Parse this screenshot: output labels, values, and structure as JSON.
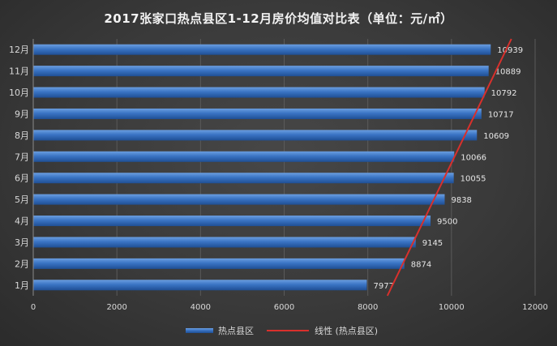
{
  "chart_data": {
    "type": "bar",
    "orientation": "horizontal",
    "title": "2017张家口热点县区1-12月房价均值对比表（单位：元/㎡）",
    "categories": [
      "1月",
      "2月",
      "3月",
      "4月",
      "5月",
      "6月",
      "7月",
      "8月",
      "9月",
      "10月",
      "11月",
      "12月"
    ],
    "series": [
      {
        "name": "热点县区",
        "color": "#3a74c4",
        "values": [
          7977,
          8874,
          9145,
          9500,
          9838,
          10055,
          10066,
          10609,
          10717,
          10792,
          10889,
          10939
        ]
      }
    ],
    "trendline": {
      "name": "线性 (热点县区)",
      "type": "linear",
      "color": "#d9302c"
    },
    "xlim": [
      0,
      12000
    ],
    "xticks": [
      0,
      2000,
      4000,
      6000,
      8000,
      10000,
      12000
    ],
    "data_labels": true,
    "grid": true,
    "legend_position": "bottom"
  }
}
